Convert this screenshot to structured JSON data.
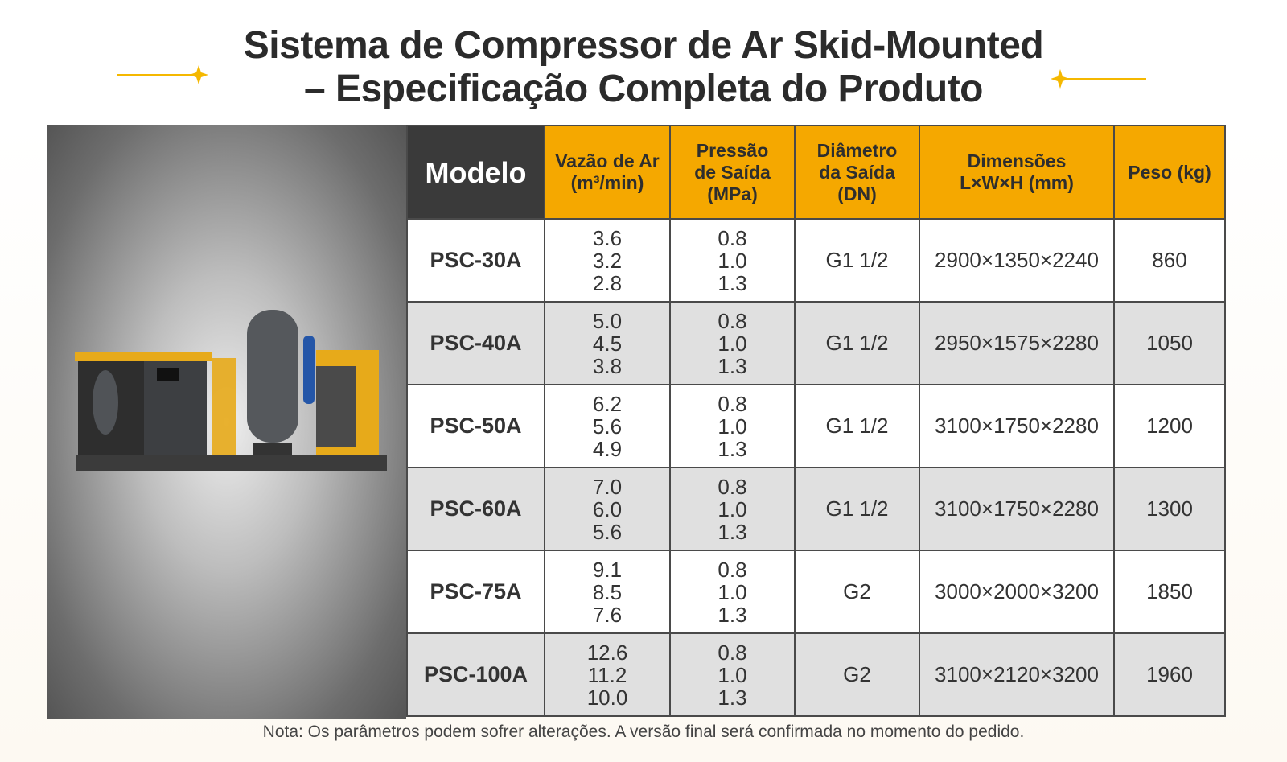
{
  "header": {
    "title_lines": [
      "Sistema de Compressor de Ar Skid-Mounted",
      "– Especificação Completa do Produto"
    ]
  },
  "table": {
    "columns": [
      [
        "Modelo"
      ],
      [
        "Vazão de Ar",
        "(m³/min)"
      ],
      [
        "Pressão",
        "de Saída",
        "(MPa)"
      ],
      [
        "Diâmetro",
        "da Saída",
        "(DN)"
      ],
      [
        "Dimensões",
        "L×W×H (mm)"
      ],
      [
        "Peso (kg)"
      ]
    ],
    "rows": [
      [
        "PSC-30A",
        [
          "3.6",
          "3.2",
          "2.8"
        ],
        [
          "0.8",
          "1.0",
          "1.3"
        ],
        "G1 1/2",
        "2900×1350×2240",
        "860"
      ],
      [
        "PSC-40A",
        [
          "5.0",
          "4.5",
          "3.8"
        ],
        [
          "0.8",
          "1.0",
          "1.3"
        ],
        "G1 1/2",
        "2950×1575×2280",
        "1050"
      ],
      [
        "PSC-50A",
        [
          "6.2",
          "5.6",
          "4.9"
        ],
        [
          "0.8",
          "1.0",
          "1.3"
        ],
        "G1 1/2",
        "3100×1750×2280",
        "1200"
      ],
      [
        "PSC-60A",
        [
          "7.0",
          "6.0",
          "5.6"
        ],
        [
          "0.8",
          "1.0",
          "1.3"
        ],
        "G1 1/2",
        "3100×1750×2280",
        "1300"
      ],
      [
        "PSC-75A",
        [
          "9.1",
          "8.5",
          "7.6"
        ],
        [
          "0.8",
          "1.0",
          "1.3"
        ],
        "G2",
        "3000×2000×3200",
        "1850"
      ],
      [
        "PSC-100A",
        [
          "12.6",
          "11.2",
          "10.0"
        ],
        [
          "0.8",
          "1.0",
          "1.3"
        ],
        "G2",
        "3100×2120×3200",
        "1960"
      ]
    ]
  },
  "footer": {
    "note": "Nota: Os parâmetros podem sofrer alterações. A versão final será confirmada no momento do pedido."
  }
}
